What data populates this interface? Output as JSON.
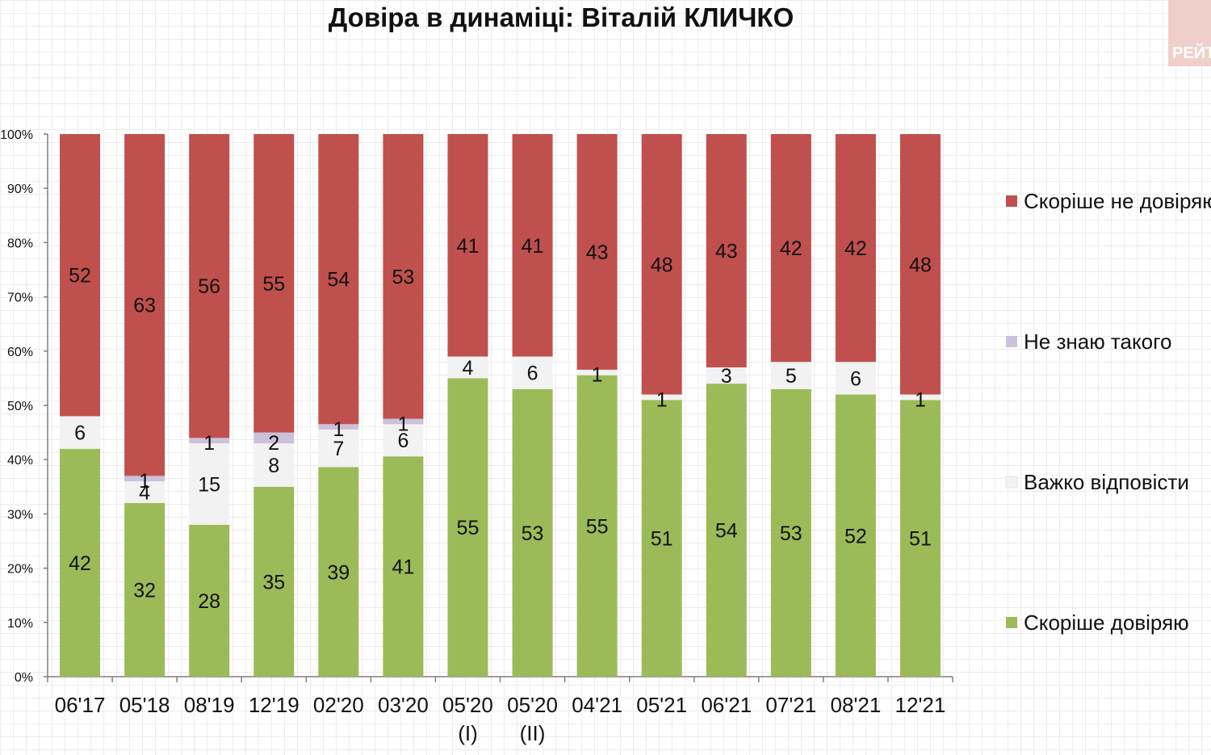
{
  "title": "Довіра в динаміці: Віталій КЛИЧКО",
  "logo_text": "РЕЙТ",
  "chart_data": {
    "type": "bar",
    "stacked": true,
    "percent": true,
    "categories": [
      [
        "06'17"
      ],
      [
        "05'18"
      ],
      [
        "08'19"
      ],
      [
        "12'19"
      ],
      [
        "02'20"
      ],
      [
        "03'20"
      ],
      [
        "05'20",
        "(I)"
      ],
      [
        "05'20",
        "(II)"
      ],
      [
        "04'21"
      ],
      [
        "05'21"
      ],
      [
        "06'21"
      ],
      [
        "07'21"
      ],
      [
        "08'21"
      ],
      [
        "12'21"
      ]
    ],
    "series": [
      {
        "name": "Скоріше довіряю",
        "color": "#9bbb59",
        "values": [
          42,
          32,
          28,
          35,
          39,
          41,
          55,
          53,
          55,
          51,
          54,
          53,
          52,
          51
        ]
      },
      {
        "name": "Важко відповісти",
        "color": "#f2f2f2",
        "values": [
          6,
          4,
          15,
          8,
          7,
          6,
          4,
          6,
          1,
          1,
          3,
          5,
          6,
          1
        ]
      },
      {
        "name": "Не знаю такого",
        "color": "#ccc1da",
        "values": [
          null,
          1,
          1,
          2,
          1,
          1,
          null,
          null,
          null,
          null,
          null,
          null,
          null,
          null
        ]
      },
      {
        "name": "Скоріше не довіряю",
        "color": "#c0504d",
        "values": [
          52,
          63,
          56,
          55,
          54,
          53,
          41,
          41,
          43,
          48,
          43,
          42,
          42,
          48
        ]
      }
    ],
    "y_ticks": [
      "0%",
      "10%",
      "20%",
      "30%",
      "40%",
      "50%",
      "60%",
      "70%",
      "80%",
      "90%",
      "100%"
    ],
    "ylim": [
      0,
      100
    ],
    "legend_position": "right",
    "legend_order": [
      "Скоріше не довіряю",
      "Не знаю такого",
      "Важко відповісти",
      "Скоріше довіряю"
    ]
  }
}
